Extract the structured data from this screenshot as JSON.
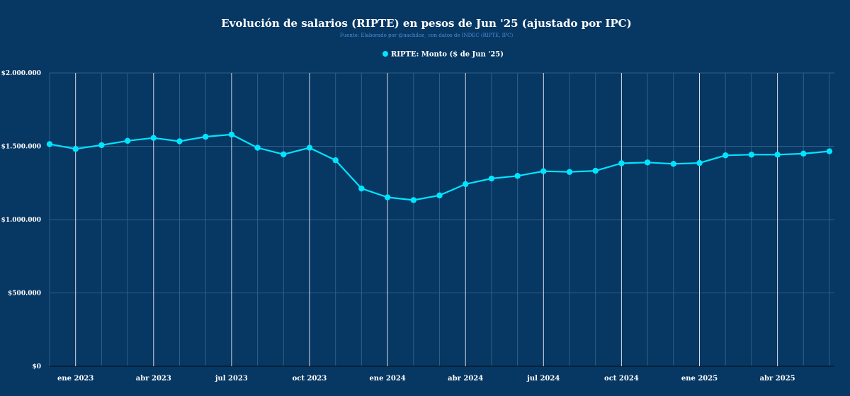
{
  "chart_data": {
    "type": "line",
    "title": "Evolución de salarios (RIPTE) en pesos de Jun '25 (ajustado por IPC)",
    "subtitle": "Fuente: Elaborado por @nachiloz_ con datos de INDEC (RIPTE, IPC)",
    "legend": {
      "label": "RIPTE: Monto ($ de Jun '25)",
      "position": "top-center"
    },
    "series": [
      {
        "name": "RIPTE: Monto ($ de Jun '25)",
        "color": "#00e5ff",
        "values": [
          1515000,
          1482000,
          1508000,
          1537000,
          1557000,
          1534000,
          1565000,
          1580000,
          1490000,
          1445000,
          1490000,
          1405000,
          1212000,
          1152000,
          1133000,
          1165000,
          1242000,
          1280000,
          1298000,
          1330000,
          1325000,
          1333000,
          1384000,
          1390000,
          1380000,
          1386000,
          1438000,
          1443000,
          1443000,
          1450000,
          1466000
        ]
      }
    ],
    "x_start_month": "2022-12",
    "x_labels": [
      {
        "label": "ene 2023",
        "index": 1
      },
      {
        "label": "abr 2023",
        "index": 4
      },
      {
        "label": "jul 2023",
        "index": 7
      },
      {
        "label": "oct 2023",
        "index": 10
      },
      {
        "label": "ene 2024",
        "index": 13
      },
      {
        "label": "abr 2024",
        "index": 16
      },
      {
        "label": "jul 2024",
        "index": 19
      },
      {
        "label": "oct 2024",
        "index": 22
      },
      {
        "label": "ene 2025",
        "index": 25
      },
      {
        "label": "abr 2025",
        "index": 28
      }
    ],
    "y_ticks": [
      {
        "value": 0,
        "label": "$0"
      },
      {
        "value": 500000,
        "label": "$500.000"
      },
      {
        "value": 1000000,
        "label": "$1.000.000"
      },
      {
        "value": 1500000,
        "label": "$1.500.000"
      },
      {
        "value": 2000000,
        "label": "$2.000.000"
      }
    ],
    "ylim": [
      0,
      2000000
    ],
    "grid": true
  },
  "colors": {
    "background": "#073763",
    "line": "#00e5ff",
    "grid_major": "#d8dde6",
    "grid_minor": "#2f5e8a",
    "subtitle": "#4d8fd6"
  }
}
